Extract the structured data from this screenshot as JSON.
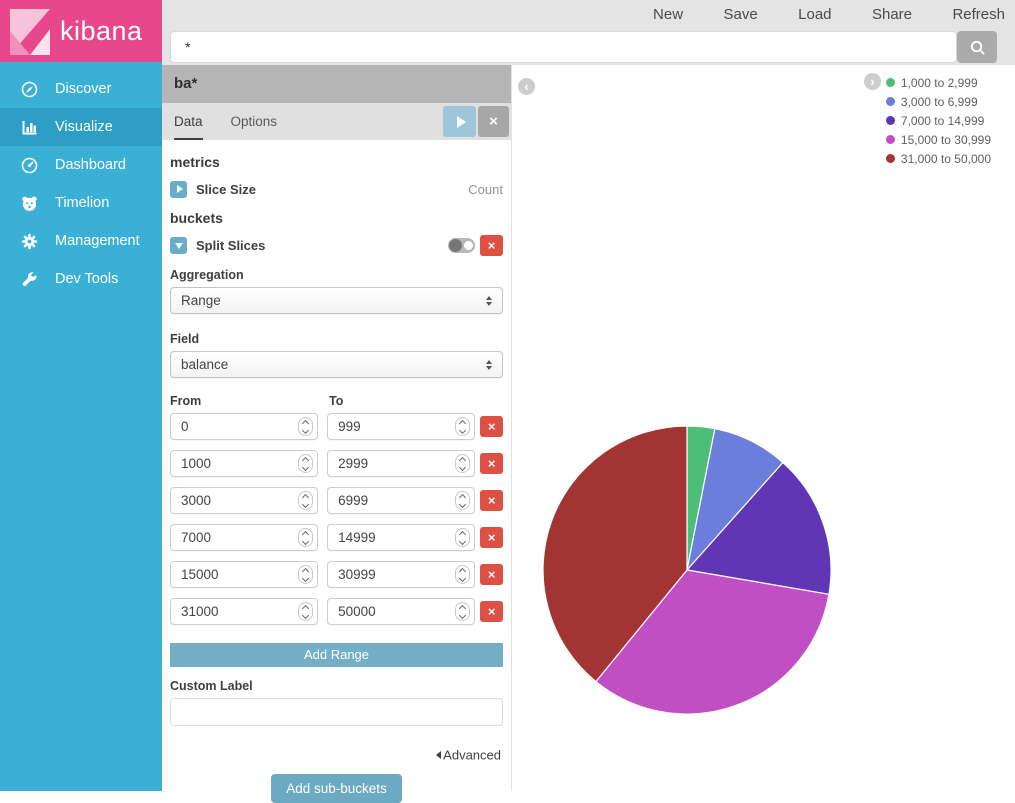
{
  "brand": {
    "title": "kibana",
    "logo_icon": "kibana-logo-icon"
  },
  "topbar": {
    "menu": [
      {
        "label": "New"
      },
      {
        "label": "Save"
      },
      {
        "label": "Load"
      },
      {
        "label": "Share"
      },
      {
        "label": "Refresh"
      }
    ],
    "search": {
      "value": "*",
      "button_icon": "search-icon"
    }
  },
  "sidebar": {
    "items": [
      {
        "label": "Discover",
        "icon": "compass-icon",
        "active": false
      },
      {
        "label": "Visualize",
        "icon": "bar-chart-icon",
        "active": true
      },
      {
        "label": "Dashboard",
        "icon": "dashboard-icon",
        "active": false
      },
      {
        "label": "Timelion",
        "icon": "timelion-icon",
        "active": false
      },
      {
        "label": "Management",
        "icon": "gear-icon",
        "active": false
      },
      {
        "label": "Dev Tools",
        "icon": "wrench-icon",
        "active": false
      }
    ]
  },
  "panel": {
    "title": "ba*",
    "tabs": [
      {
        "label": "Data",
        "active": true
      },
      {
        "label": "Options",
        "active": false
      }
    ],
    "metrics_heading": "metrics",
    "slice_size": {
      "label": "Slice Size",
      "value": "Count"
    },
    "buckets_heading": "buckets",
    "split_slices": {
      "label": "Split Slices"
    },
    "aggregation": {
      "label": "Aggregation",
      "value": "Range"
    },
    "field": {
      "label": "Field",
      "value": "balance"
    },
    "ranges": {
      "from_label": "From",
      "to_label": "To",
      "rows": [
        {
          "from": "0",
          "to": "999"
        },
        {
          "from": "1000",
          "to": "2999"
        },
        {
          "from": "3000",
          "to": "6999"
        },
        {
          "from": "7000",
          "to": "14999"
        },
        {
          "from": "15000",
          "to": "30999"
        },
        {
          "from": "31000",
          "to": "50000"
        }
      ]
    },
    "add_range_label": "Add Range",
    "custom_label": {
      "label": "Custom Label",
      "value": ""
    },
    "advanced_label": "Advanced",
    "add_sub_buckets_label": "Add sub-buckets"
  },
  "chart_data": {
    "type": "pie",
    "labels": [
      "1,000 to 2,999",
      "3,000 to 6,999",
      "7,000 to 14,999",
      "15,000 to 30,999",
      "31,000 to 50,000"
    ],
    "values": [
      3.1,
      8.5,
      16.1,
      33.2,
      39.1
    ],
    "colors": [
      "#4dbe77",
      "#6b7edb",
      "#6036b4",
      "#c24ec4",
      "#a23433"
    ],
    "title": "",
    "legend_position": "top-right",
    "start_angle_deg": -90,
    "direction": "clockwise"
  }
}
